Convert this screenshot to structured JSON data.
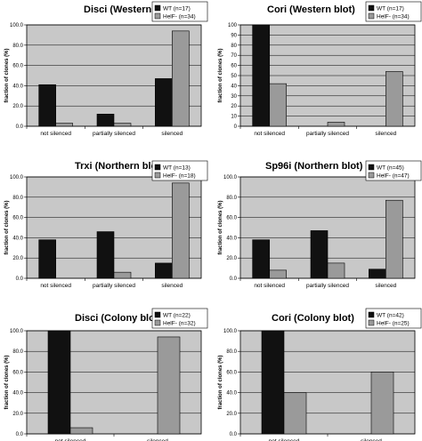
{
  "colors": {
    "wt": "#111111",
    "helf": "#9a9a9a",
    "plot_bg": "#c8c8c8",
    "grid": "#000000"
  },
  "chart_data": [
    {
      "type": "bar",
      "title": "Disci (Western blot)",
      "ylabel": "fraction of clones (%)",
      "ylim": [
        0,
        100
      ],
      "yticks": [
        "0.0",
        "20.0",
        "40.0",
        "60.0",
        "80.0",
        "100.0"
      ],
      "categories": [
        "not silenced",
        "partially silenced",
        "silenced"
      ],
      "series": [
        {
          "name": "WT (n=17)",
          "values": [
            41,
            12,
            47
          ]
        },
        {
          "name": "HelF- (n=34)",
          "values": [
            3,
            3,
            94
          ]
        }
      ],
      "legend": "top-right"
    },
    {
      "type": "bar",
      "title": "Cori (Western blot)",
      "ylabel": "fraction of clones (%)",
      "ylim": [
        0,
        100
      ],
      "yticks": [
        "0",
        "10",
        "20",
        "30",
        "40",
        "50",
        "60",
        "70",
        "80",
        "90",
        "100"
      ],
      "categories": [
        "not silenced",
        "partially silenced",
        "silenced"
      ],
      "series": [
        {
          "name": "WT (n=17)",
          "values": [
            100,
            0,
            0
          ]
        },
        {
          "name": "HelF- (n=34)",
          "values": [
            42,
            4,
            54
          ]
        }
      ],
      "legend": "top-right"
    },
    {
      "type": "bar",
      "title": "Trxi (Northern blot)",
      "ylabel": "fraction of clones (%)",
      "ylim": [
        0,
        100
      ],
      "yticks": [
        "0.0",
        "20.0",
        "40.0",
        "60.0",
        "80.0",
        "100.0"
      ],
      "categories": [
        "not silenced",
        "partially silenced",
        "silenced"
      ],
      "series": [
        {
          "name": "WT (n=13)",
          "values": [
            38,
            46,
            15
          ]
        },
        {
          "name": "HelF- (n=18)",
          "values": [
            0,
            6,
            94
          ]
        }
      ],
      "legend": "top-right"
    },
    {
      "type": "bar",
      "title": "Sp96i (Northern blot)",
      "ylabel": "fraction of clones (%)",
      "ylim": [
        0,
        100
      ],
      "yticks": [
        "0.0",
        "20.0",
        "40.0",
        "60.0",
        "80.0",
        "100.0"
      ],
      "categories": [
        "not silenced",
        "partially silenced",
        "silenced"
      ],
      "series": [
        {
          "name": "WT (n=45)",
          "values": [
            38,
            47,
            9
          ]
        },
        {
          "name": "HelF- (n=47)",
          "values": [
            8,
            15,
            77
          ]
        }
      ],
      "legend": "top-right"
    },
    {
      "type": "bar",
      "title": "Disci (Colony blot)",
      "ylabel": "fraction of clones (%)",
      "ylim": [
        0,
        100
      ],
      "yticks": [
        "0.0",
        "20.0",
        "40.0",
        "60.0",
        "80.0",
        "100.0"
      ],
      "categories": [
        "not silenced",
        "silenced"
      ],
      "series": [
        {
          "name": "WT (n=22)",
          "values": [
            100,
            0
          ]
        },
        {
          "name": "HelF- (n=32)",
          "values": [
            6,
            94
          ]
        }
      ],
      "legend": "top-right"
    },
    {
      "type": "bar",
      "title": "Cori (Colony blot)",
      "ylabel": "fraction of clones (%)",
      "ylim": [
        0,
        100
      ],
      "yticks": [
        "0.0",
        "20.0",
        "40.0",
        "60.0",
        "80.0",
        "100.0"
      ],
      "categories": [
        "not silenced",
        "silenced"
      ],
      "series": [
        {
          "name": "WT (n=42)",
          "values": [
            100,
            0
          ]
        },
        {
          "name": "HelF- (n=25)",
          "values": [
            40,
            60
          ]
        }
      ],
      "legend": "top-right"
    }
  ]
}
